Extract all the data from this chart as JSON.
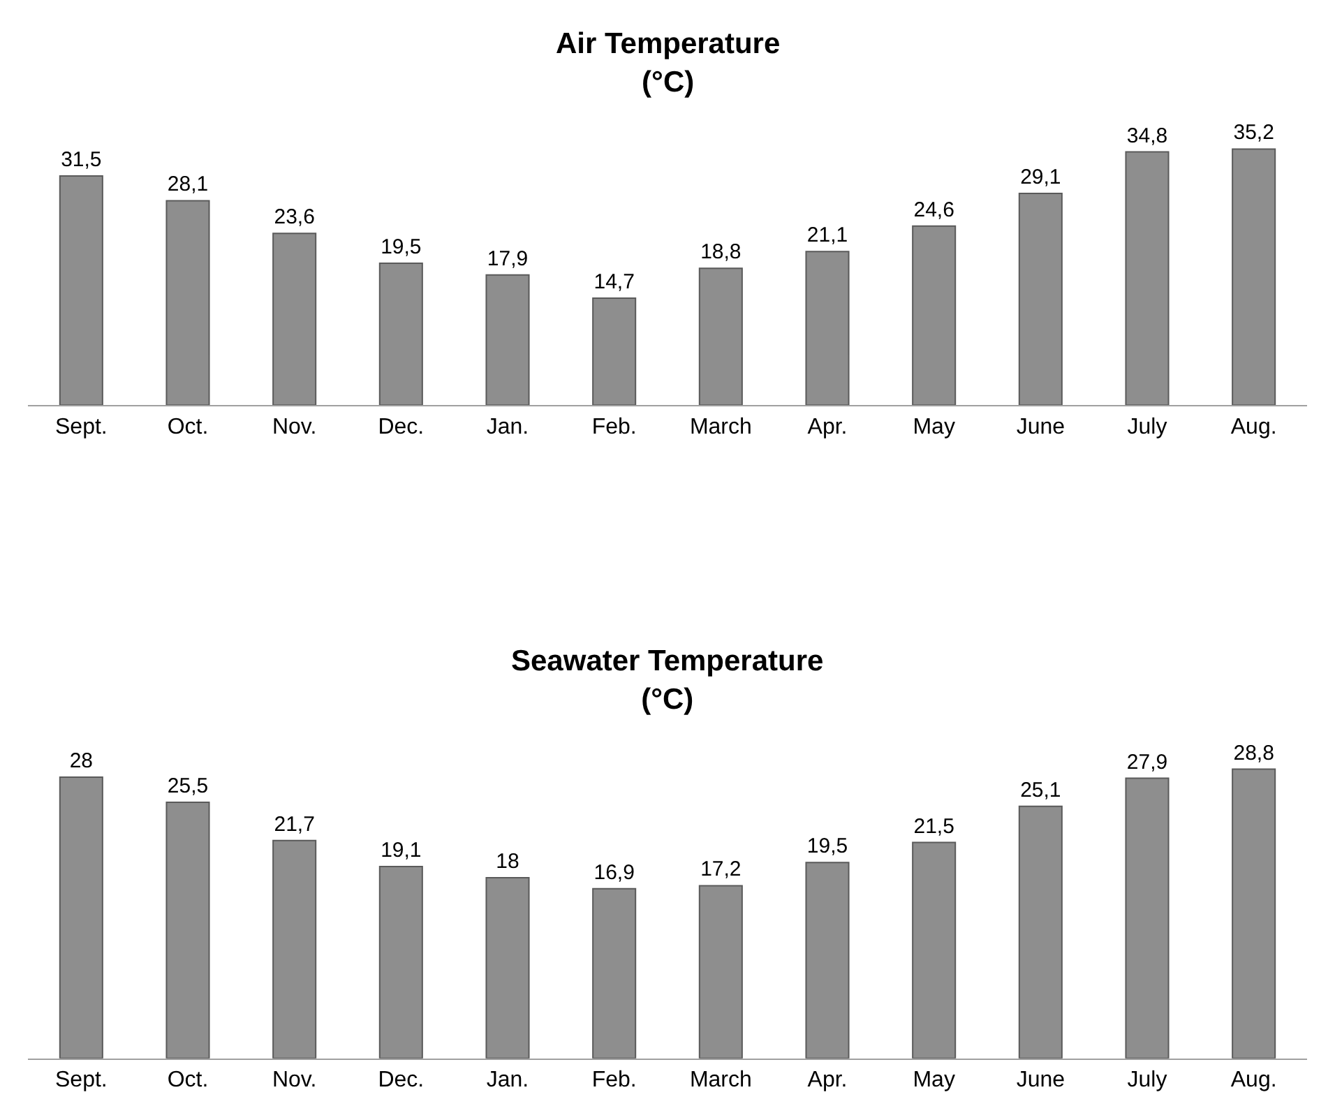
{
  "chart_data": [
    {
      "type": "bar",
      "title": "Air Temperature\n(°C)",
      "categories": [
        "Sept.",
        "Oct.",
        "Nov.",
        "Dec.",
        "Jan.",
        "Feb.",
        "March",
        "Apr.",
        "May",
        "June",
        "July",
        "Aug."
      ],
      "series": [
        {
          "color": "#8e8e8e",
          "values": [
            31.5,
            28.1,
            23.6,
            19.5,
            17.9,
            14.7,
            18.8,
            21.1,
            24.6,
            29.1,
            34.8,
            35.2
          ],
          "value_labels": [
            "31,5",
            "28,1",
            "23,6",
            "19,5",
            "17,9",
            "14,7",
            "18,8",
            "21,1",
            "24,6",
            "29,1",
            "34,8",
            "35,2"
          ]
        }
      ],
      "tick_labels": "x"
    },
    {
      "type": "bar",
      "title": "Seawater Temperature\n(°C)",
      "categories": [
        "Sept.",
        "Oct.",
        "Nov.",
        "Dec.",
        "Jan.",
        "Feb.",
        "March",
        "Apr.",
        "May",
        "June",
        "July",
        "Aug."
      ],
      "series": [
        {
          "color": "#8e8e8e",
          "values": [
            28,
            25.5,
            21.7,
            19.1,
            18,
            16.9,
            17.2,
            19.5,
            21.5,
            25.1,
            27.9,
            28.8
          ],
          "value_labels": [
            "28",
            "25,5",
            "21,7",
            "19,1",
            "18",
            "16,9",
            "17,2",
            "19,5",
            "21,5",
            "25,1",
            "27,9",
            "28,8"
          ]
        }
      ],
      "tick_labels": "x"
    }
  ]
}
